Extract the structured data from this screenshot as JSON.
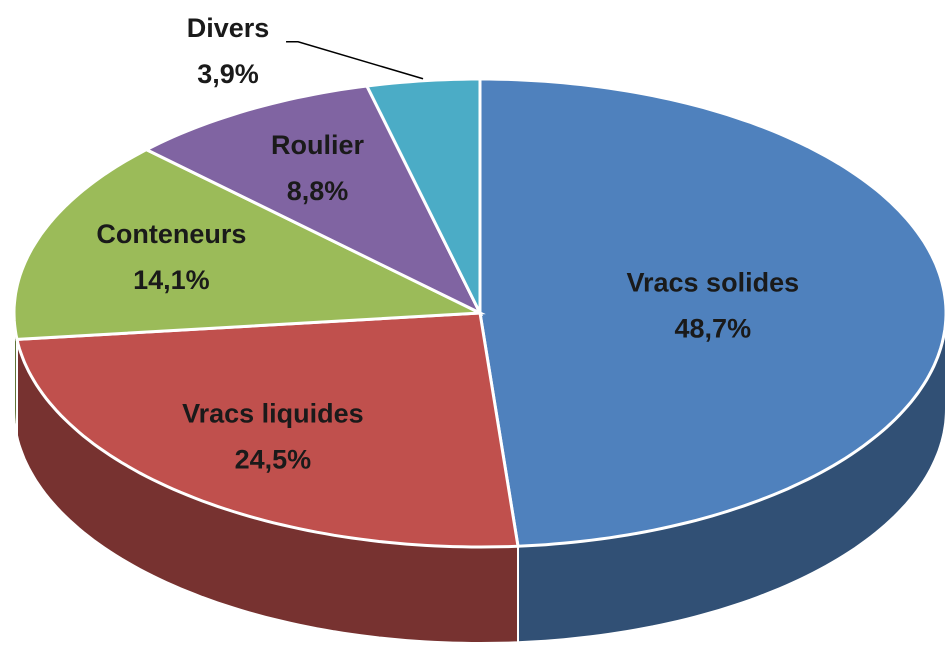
{
  "chart_data": {
    "type": "pie",
    "categories": [
      "Vracs solides",
      "Vracs liquides",
      "Conteneurs",
      "Roulier",
      "Divers"
    ],
    "values": [
      48.7,
      24.5,
      14.1,
      8.8,
      3.9
    ],
    "value_labels": [
      "48,7%",
      "24,5%",
      "14,1%",
      "8,8%",
      "3,9%"
    ],
    "colors": [
      "#4f81bd",
      "#c0504d",
      "#9bbb59",
      "#8064a2",
      "#4bacc6"
    ]
  }
}
